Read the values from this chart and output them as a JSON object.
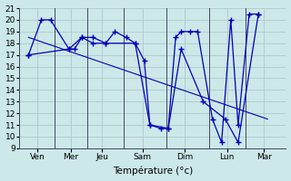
{
  "bg": "#cce8e8",
  "grid_color": "#aacccc",
  "lc": "#0000bb",
  "xlabel": "Température (°c)",
  "days": [
    "Ven",
    "Mer",
    "Jeu",
    "Sam",
    "Dim",
    "Lun",
    "Mar"
  ],
  "ylim": [
    9,
    21
  ],
  "yticks": [
    9,
    10,
    11,
    12,
    13,
    14,
    15,
    16,
    17,
    18,
    19,
    20,
    21
  ],
  "xlim": [
    -0.5,
    14.0
  ],
  "day_x": [
    0.5,
    2.3,
    4.0,
    6.2,
    8.5,
    10.8,
    12.8
  ],
  "sep_x": [
    1.4,
    3.2,
    5.2,
    7.5,
    9.8,
    11.8
  ],
  "line1_x": [
    0,
    0.7,
    1.2,
    2.2,
    2.5,
    2.9,
    3.5,
    4.2,
    4.7,
    5.3,
    5.8,
    6.3,
    6.6,
    7.2,
    7.6,
    8.0,
    8.3,
    8.8,
    9.2,
    10.0,
    10.5,
    11.0,
    11.4,
    12.0,
    12.5
  ],
  "line1_y": [
    17,
    20,
    20,
    17.5,
    17.5,
    18.5,
    18.5,
    18.0,
    19.0,
    18.5,
    18.0,
    16.5,
    11.0,
    10.7,
    10.7,
    18.5,
    19.0,
    19.0,
    19.0,
    11.5,
    9.5,
    20.0,
    11.0,
    20.5,
    20.5
  ],
  "line2_x": [
    0,
    2.2,
    2.9,
    3.5,
    4.2,
    5.8,
    6.6,
    7.6,
    8.3,
    9.5,
    10.7,
    11.4,
    12.5
  ],
  "line2_y": [
    17,
    17.5,
    18.5,
    18.0,
    18.0,
    18.0,
    11.0,
    10.7,
    17.5,
    13.0,
    11.5,
    9.5,
    20.5
  ],
  "trend_x": [
    0,
    13.0
  ],
  "trend_y": [
    18.5,
    11.5
  ]
}
